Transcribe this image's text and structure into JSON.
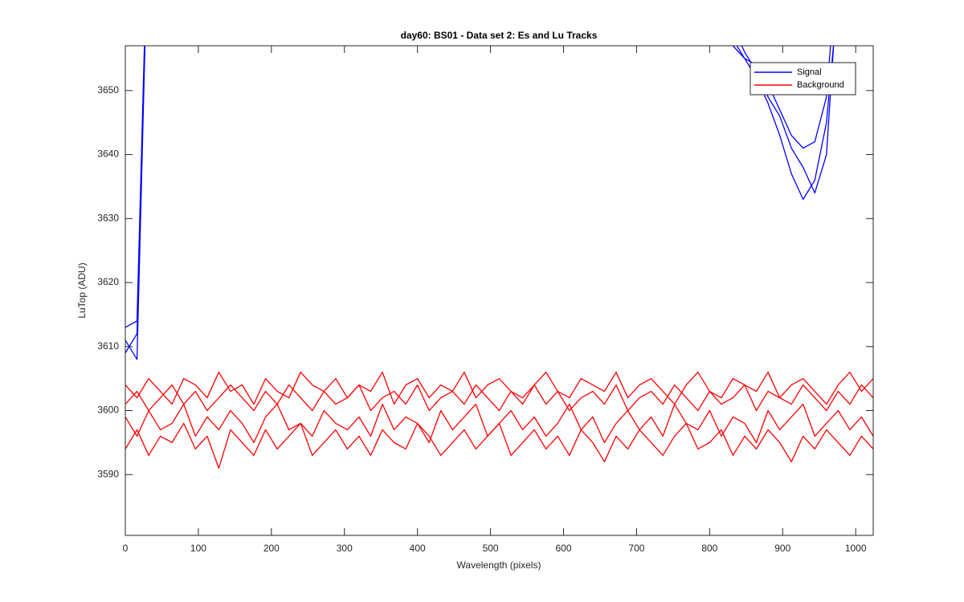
{
  "chart_data": {
    "type": "line",
    "title": "day60: BS01 - Data set 2: Es and Lu Tracks",
    "x_label": "Wavelength (pixels)",
    "y_label": "LuTop (ADU)",
    "xlim": [
      0,
      1024
    ],
    "ylim": [
      3580.5,
      3657
    ],
    "xticks": [
      0,
      100,
      200,
      300,
      400,
      500,
      600,
      700,
      800,
      900,
      1000
    ],
    "yticks": [
      3590,
      3600,
      3610,
      3620,
      3630,
      3640,
      3650
    ],
    "grid": false,
    "legend": "northeast",
    "x": [
      0,
      16,
      32,
      48,
      64,
      80,
      96,
      112,
      128,
      144,
      160,
      176,
      192,
      208,
      224,
      240,
      256,
      272,
      288,
      304,
      320,
      336,
      352,
      368,
      384,
      400,
      416,
      432,
      448,
      464,
      480,
      496,
      512,
      528,
      544,
      560,
      576,
      592,
      608,
      624,
      640,
      656,
      672,
      688,
      704,
      720,
      736,
      752,
      768,
      784,
      800,
      816,
      832,
      848,
      864,
      880,
      896,
      912,
      928,
      944,
      960,
      976,
      992,
      1008,
      1024
    ],
    "series": [
      {
        "name": "Signal",
        "color": "#0000ff",
        "values": [
          [
            3609,
            3612,
            3680,
            null,
            null,
            null,
            null,
            null,
            null,
            null,
            null,
            null,
            null,
            null,
            null,
            null,
            null,
            null,
            null,
            null,
            null,
            null,
            null,
            null,
            null,
            null,
            null,
            null,
            null,
            null,
            null,
            null,
            null,
            null,
            null,
            null,
            null,
            null,
            null,
            null,
            null,
            null,
            null,
            null,
            null,
            null,
            null,
            null,
            null,
            null,
            null,
            3668,
            3658,
            3655,
            3652,
            3648,
            3643,
            3637,
            3633,
            3636,
            3645,
            3665,
            3690,
            null,
            null
          ],
          [
            3611,
            3608,
            3680,
            null,
            null,
            null,
            null,
            null,
            null,
            null,
            null,
            null,
            null,
            null,
            null,
            null,
            null,
            null,
            null,
            null,
            null,
            null,
            null,
            null,
            null,
            null,
            null,
            null,
            null,
            null,
            null,
            null,
            null,
            null,
            null,
            null,
            null,
            null,
            null,
            null,
            null,
            null,
            null,
            null,
            null,
            null,
            null,
            null,
            null,
            null,
            null,
            3670,
            3660,
            3656,
            3653,
            3649,
            3646,
            3641,
            3638,
            3634,
            3640,
            3668,
            3692,
            null,
            null
          ],
          [
            3613,
            3614,
            3682,
            null,
            null,
            null,
            null,
            null,
            null,
            null,
            null,
            null,
            null,
            null,
            null,
            null,
            null,
            null,
            null,
            null,
            null,
            null,
            null,
            null,
            null,
            null,
            null,
            null,
            null,
            null,
            null,
            null,
            null,
            null,
            null,
            null,
            null,
            null,
            null,
            null,
            null,
            null,
            null,
            null,
            null,
            null,
            null,
            null,
            null,
            null,
            null,
            3666,
            3657,
            3655,
            3654,
            3651,
            3647,
            3643,
            3641,
            3642,
            3649,
            3672,
            3695,
            null,
            null
          ]
        ]
      },
      {
        "name": "Background",
        "color": "#ff0000",
        "values": [
          [
            3604,
            3602,
            3605,
            3603,
            3601,
            3605,
            3604,
            3602,
            3606,
            3603,
            3604,
            3601,
            3605,
            3603,
            3602,
            3606,
            3604,
            3603,
            3605,
            3602,
            3604,
            3603,
            3606,
            3601,
            3604,
            3605,
            3602,
            3604,
            3603,
            3606,
            3602,
            3604,
            3605,
            3603,
            3601,
            3604,
            3606,
            3603,
            3602,
            3605,
            3604,
            3603,
            3606,
            3602,
            3604,
            3605,
            3603,
            3601,
            3604,
            3606,
            3603,
            3602,
            3605,
            3604,
            3603,
            3606,
            3602,
            3604,
            3605,
            3603,
            3601,
            3604,
            3606,
            3603,
            3605
          ],
          [
            3601,
            3603,
            3600,
            3602,
            3604,
            3601,
            3603,
            3600,
            3602,
            3604,
            3602,
            3600,
            3603,
            3601,
            3604,
            3602,
            3600,
            3603,
            3601,
            3602,
            3604,
            3600,
            3602,
            3603,
            3601,
            3604,
            3600,
            3602,
            3603,
            3601,
            3604,
            3602,
            3600,
            3603,
            3602,
            3604,
            3601,
            3603,
            3600,
            3602,
            3603,
            3601,
            3604,
            3600,
            3602,
            3603,
            3601,
            3604,
            3602,
            3600,
            3603,
            3601,
            3602,
            3604,
            3600,
            3603,
            3602,
            3601,
            3604,
            3602,
            3600,
            3603,
            3601,
            3604,
            3602
          ],
          [
            3599,
            3596,
            3600,
            3597,
            3598,
            3601,
            3596,
            3599,
            3597,
            3600,
            3598,
            3595,
            3599,
            3601,
            3597,
            3598,
            3596,
            3600,
            3598,
            3597,
            3599,
            3596,
            3601,
            3597,
            3599,
            3598,
            3595,
            3600,
            3597,
            3599,
            3601,
            3596,
            3598,
            3600,
            3597,
            3599,
            3596,
            3598,
            3601,
            3597,
            3599,
            3595,
            3598,
            3600,
            3597,
            3599,
            3596,
            3601,
            3598,
            3597,
            3600,
            3596,
            3599,
            3598,
            3595,
            3600,
            3597,
            3599,
            3601,
            3596,
            3598,
            3600,
            3597,
            3599,
            3596
          ],
          [
            3594,
            3597,
            3593,
            3596,
            3595,
            3598,
            3594,
            3596,
            3591,
            3597,
            3595,
            3593,
            3597,
            3594,
            3596,
            3598,
            3593,
            3595,
            3597,
            3594,
            3596,
            3593,
            3597,
            3595,
            3594,
            3598,
            3596,
            3593,
            3595,
            3597,
            3594,
            3596,
            3598,
            3593,
            3595,
            3597,
            3594,
            3596,
            3593,
            3597,
            3595,
            3592,
            3596,
            3594,
            3597,
            3595,
            3593,
            3596,
            3598,
            3594,
            3595,
            3597,
            3593,
            3596,
            3594,
            3597,
            3595,
            3592,
            3596,
            3594,
            3597,
            3595,
            3593,
            3596,
            3594
          ]
        ]
      }
    ]
  }
}
